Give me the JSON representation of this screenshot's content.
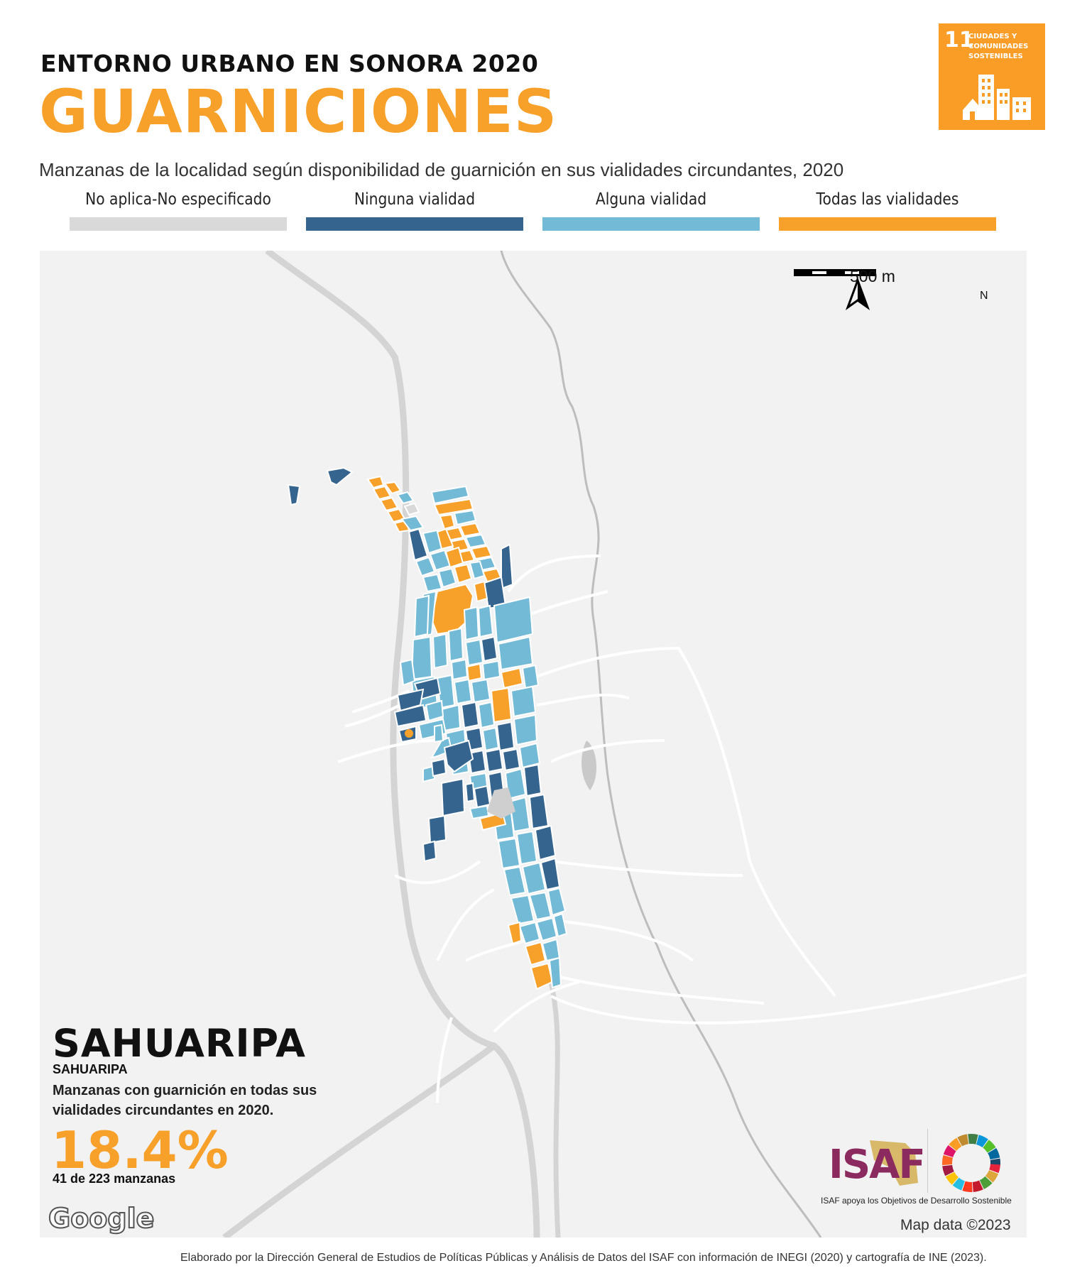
{
  "header": {
    "supertitle": "ENTORNO URBANO EN SONORA 2020",
    "title": "GUARNICIONES",
    "subtitle": "Manzanas de la localidad según disponibilidad de guarnición en sus vialidades circundantes, 2020"
  },
  "legend": [
    {
      "label": "No aplica-No especificado",
      "color": "#d9d9d9"
    },
    {
      "label": "Ninguna vialidad",
      "color": "#35648f"
    },
    {
      "label": "Alguna vialidad",
      "color": "#73bad6"
    },
    {
      "label": "Todas las vialidades",
      "color": "#f7a02a"
    }
  ],
  "sdg_badge": {
    "number": "11",
    "text": "CIUDADES Y COMUNIDADES SOSTENIBLES",
    "color": "#f99d26"
  },
  "map": {
    "scale_label": "500 m",
    "north_label": "N",
    "credit": "Map data ©2023",
    "google_label": "Google"
  },
  "locality": {
    "municipality": "SAHUARIPA",
    "locality": "SAHUARIPA",
    "description": "Manzanas con guarnición en todas sus vialidades circundantes en 2020.",
    "percentage": "18.4%",
    "count": "41 de 223 manzanas"
  },
  "logos": {
    "isaf": "ISAF",
    "isaf_tagline": "ISAF apoya los Objetivos de Desarrollo Sostenible"
  },
  "footer": "Elaborado por la Dirección General de Estudios de Políticas Públicas y Análisis de Datos del ISAF con información de INEGI (2020) y cartografía de INE (2023)."
}
